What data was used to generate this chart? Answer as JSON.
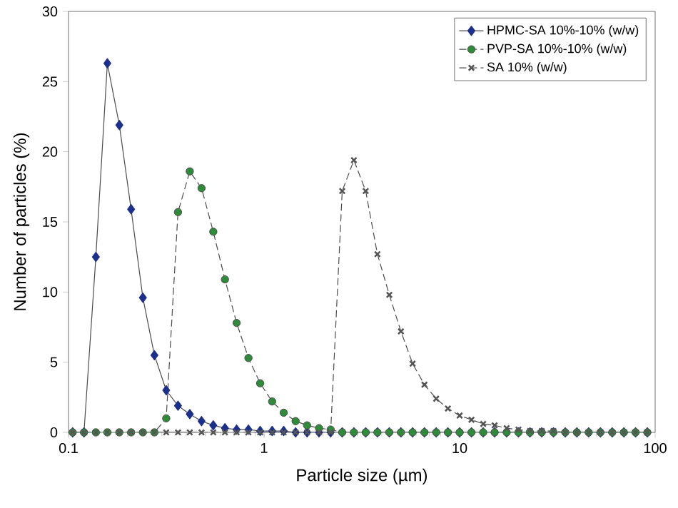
{
  "chart_data": {
    "type": "line",
    "xlabel": "Particle size (µm)",
    "ylabel": "Number of particles (%)",
    "log": "x",
    "xlim": [
      0.1,
      100
    ],
    "xticks": [
      0.1,
      1,
      10,
      100
    ],
    "ylim": [
      0,
      30
    ],
    "yticks": [
      0,
      5,
      10,
      15,
      20,
      25,
      30
    ],
    "grid": false,
    "legend": "top right",
    "x": [
      0.105,
      0.12,
      0.138,
      0.158,
      0.182,
      0.209,
      0.24,
      0.275,
      0.316,
      0.363,
      0.417,
      0.479,
      0.55,
      0.631,
      0.724,
      0.832,
      0.955,
      1.1,
      1.26,
      1.45,
      1.66,
      1.91,
      2.19,
      2.51,
      2.88,
      3.31,
      3.8,
      4.37,
      5.01,
      5.75,
      6.61,
      7.59,
      8.71,
      10.0,
      11.5,
      13.2,
      15.1,
      17.4,
      20.0,
      22.9,
      26.3,
      30.2,
      34.7,
      39.8,
      45.7,
      52.5,
      60.3,
      69.2,
      79.4,
      91.2
    ],
    "series": [
      {
        "name": "HPMC-SA 10%-10% (w/w)",
        "color": "#1c2f8c",
        "marker": "diamond",
        "line_style": "solid",
        "values": [
          0,
          0,
          12.5,
          26.3,
          21.9,
          15.9,
          9.6,
          5.5,
          3.0,
          1.9,
          1.3,
          0.8,
          0.5,
          0.3,
          0.2,
          0.2,
          0.1,
          0.1,
          0.1,
          0,
          0,
          0,
          0,
          0,
          0,
          0,
          0,
          0,
          0,
          0,
          0,
          0,
          0,
          0,
          0,
          0,
          0,
          0,
          0,
          0,
          0,
          0,
          0,
          0,
          0,
          0,
          0,
          0,
          0,
          0
        ]
      },
      {
        "name": "PVP-SA 10%-10% (w/w)",
        "color": "#2e8b3a",
        "marker": "circle",
        "line_style": "dashed",
        "values": [
          0,
          0,
          0,
          0,
          0,
          0,
          0,
          0,
          1.0,
          15.7,
          18.6,
          17.4,
          14.3,
          10.9,
          7.8,
          5.3,
          3.5,
          2.2,
          1.4,
          0.8,
          0.5,
          0.3,
          0.2,
          0,
          0,
          0,
          0,
          0,
          0,
          0,
          0,
          0,
          0,
          0,
          0,
          0,
          0,
          0,
          0,
          0,
          0,
          0,
          0,
          0,
          0,
          0,
          0,
          0,
          0,
          0
        ]
      },
      {
        "name": "SA 10% (w/w)",
        "color": "#555555",
        "marker": "cross",
        "line_style": "dashed",
        "values": [
          0,
          0,
          0,
          0,
          0,
          0,
          0,
          0,
          0,
          0,
          0,
          0,
          0,
          0,
          0,
          0,
          0,
          0,
          0,
          0,
          0,
          0,
          0,
          17.2,
          19.4,
          17.2,
          12.7,
          9.8,
          7.2,
          4.9,
          3.4,
          2.4,
          1.7,
          1.2,
          0.9,
          0.6,
          0.5,
          0.3,
          0.2,
          0.1,
          0.1,
          0.1,
          0,
          0,
          0,
          0,
          0,
          0,
          0,
          0
        ]
      }
    ]
  }
}
